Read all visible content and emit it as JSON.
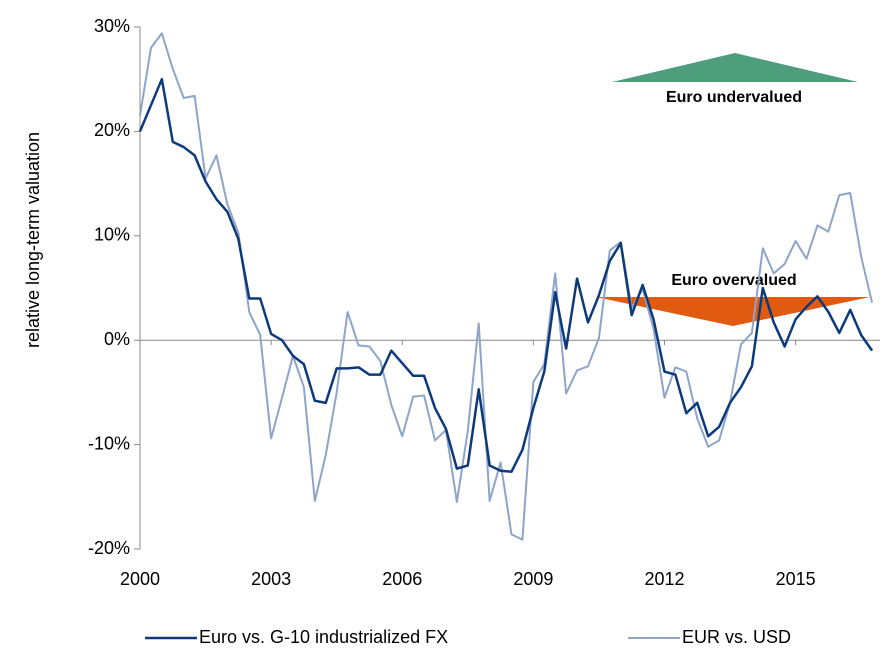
{
  "chart_data": {
    "type": "line",
    "y_label": "relative long-term valuation",
    "x": [
      2000,
      2000.25,
      2000.5,
      2000.75,
      2001,
      2001.25,
      2001.5,
      2001.75,
      2002,
      2002.25,
      2002.5,
      2002.75,
      2003,
      2003.25,
      2003.5,
      2003.75,
      2004,
      2004.25,
      2004.5,
      2004.75,
      2005,
      2005.25,
      2005.5,
      2005.75,
      2006,
      2006.25,
      2006.5,
      2006.75,
      2007,
      2007.25,
      2007.5,
      2007.75,
      2008,
      2008.25,
      2008.5,
      2008.75,
      2009,
      2009.25,
      2009.5,
      2009.75,
      2010,
      2010.25,
      2010.5,
      2010.75,
      2011,
      2011.25,
      2011.5,
      2011.75,
      2012,
      2012.25,
      2012.5,
      2012.75,
      2013,
      2013.25,
      2013.5,
      2013.75,
      2014,
      2014.25,
      2014.5,
      2014.75,
      2015,
      2015.25,
      2015.5,
      2015.75,
      2016,
      2016.25,
      2016.5,
      2016.75
    ],
    "series": [
      {
        "name": "Euro vs. G-10 industrialized FX",
        "color": "#0d3a7a",
        "values": [
          20,
          22.5,
          25,
          19,
          18.5,
          17.7,
          15.2,
          13.5,
          12.3,
          9.7,
          4,
          4,
          0.6,
          0,
          -1.5,
          -2.3,
          -5.8,
          -6,
          -2.7,
          -2.7,
          -2.6,
          -3.3,
          -3.3,
          -1,
          -2.2,
          -3.4,
          -3.4,
          -6.5,
          -8.5,
          -12.3,
          -12,
          -4.7,
          -12,
          -12.5,
          -12.6,
          -10.5,
          -6.5,
          -3,
          4.6,
          -0.8,
          5.9,
          1.7,
          4.3,
          7.6,
          9.3,
          2.4,
          5.3,
          2,
          -3,
          -3.3,
          -7,
          -6,
          -9.2,
          -8.3,
          -6,
          -4.5,
          -2.5,
          5,
          1.7,
          -0.6,
          2,
          3.2,
          4.2,
          2.7,
          0.7,
          2.9,
          0.5,
          -1
        ]
      },
      {
        "name": "EUR vs. USD",
        "color": "#8ea4c8",
        "values": [
          21.5,
          28,
          29.4,
          26,
          23.2,
          23.4,
          15.5,
          17.7,
          13,
          10.3,
          2.7,
          0.5,
          -9.4,
          -5.5,
          -1.5,
          -4.5,
          -15.4,
          -11,
          -5,
          2.7,
          -0.5,
          -0.6,
          -2,
          -6.2,
          -9.2,
          -5.4,
          -5.3,
          -9.6,
          -8.6,
          -15.5,
          -8.7,
          1.6,
          -15.4,
          -11.7,
          -18.6,
          -19.1,
          -4,
          -2.3,
          6.4,
          -5.1,
          -2.9,
          -2.5,
          0.2,
          8.6,
          9.4,
          3.1,
          4.9,
          1.1,
          -5.5,
          -2.6,
          -3,
          -7.5,
          -10.2,
          -9.6,
          -6,
          -0.4,
          0.7,
          8.8,
          6.4,
          7.3,
          9.5,
          7.8,
          11,
          10.4,
          13.9,
          14.1,
          8,
          3.6
        ]
      }
    ],
    "xlim": [
      2000,
      2017
    ],
    "xticks": [
      2000,
      2003,
      2006,
      2009,
      2012,
      2015
    ],
    "ylim": [
      -20,
      30
    ],
    "yticks": [
      {
        "value": -20,
        "label": "-20%"
      },
      {
        "value": -10,
        "label": "-10%"
      },
      {
        "value": 0,
        "label": "0%"
      },
      {
        "value": 10,
        "label": "10%"
      },
      {
        "value": 20,
        "label": "20%"
      },
      {
        "value": 30,
        "label": "30%"
      }
    ],
    "annotations": [
      {
        "text": "Euro undervalued",
        "color": "#4e9e7e"
      },
      {
        "text": "Euro overvalued",
        "color": "#e05a10"
      }
    ],
    "legend": "bottom"
  }
}
